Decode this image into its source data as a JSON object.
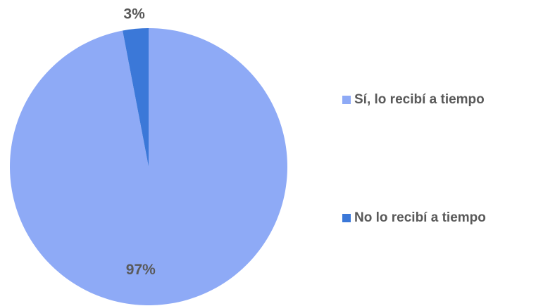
{
  "chart_data": {
    "type": "pie",
    "categories": [
      "Sí, lo recibí a tiempo",
      "No lo recibí a tiempo"
    ],
    "values": [
      97,
      3
    ],
    "value_labels": [
      "97%",
      "3%"
    ],
    "colors": [
      "#8eaaf6",
      "#3b78d8"
    ],
    "legend": "right"
  }
}
